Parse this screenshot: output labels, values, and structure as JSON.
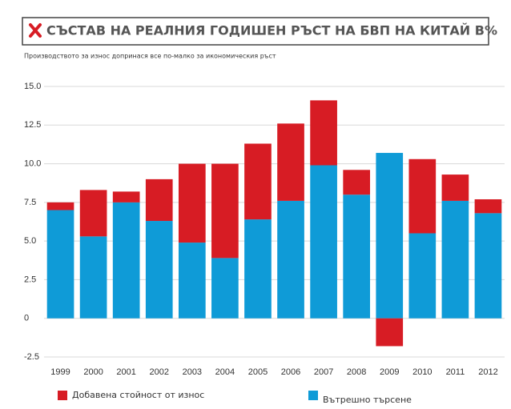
{
  "chart_data": {
    "type": "stacked_bar",
    "title": "СЪСТАВ НА РЕАЛНИЯ ГОДИШЕН РЪСТ НА БВП НА КИТАЙ В%",
    "subtitle": "Производството за износ допринася все по-малко за икономическия ръст",
    "categories": [
      "1999",
      "2000",
      "2001",
      "2002",
      "2003",
      "2004",
      "2005",
      "2006",
      "2007",
      "2008",
      "2009",
      "2010",
      "2011",
      "2012"
    ],
    "series": [
      {
        "name": "Вътрешно търсене",
        "color": "#0f9bd7",
        "values": [
          7.0,
          5.3,
          7.5,
          6.3,
          4.9,
          3.9,
          6.4,
          7.6,
          9.9,
          8.0,
          10.7,
          5.5,
          7.6,
          6.8
        ]
      },
      {
        "name": "Добавена стойност от износ",
        "color": "#d71c24",
        "values": [
          0.5,
          3.0,
          0.7,
          2.7,
          5.1,
          6.1,
          4.9,
          5.0,
          4.2,
          1.6,
          -1.8,
          4.8,
          1.7,
          0.9
        ]
      }
    ],
    "ylim": [
      -2.5,
      15
    ],
    "yticks": [
      -2.5,
      0,
      {
        "value": 2.5,
        "label": "2.5"
      },
      {
        "value": 5,
        "label": "5.0"
      },
      {
        "value": 7.5,
        "label": "7.5"
      },
      {
        "value": 10,
        "label": "10.0"
      },
      {
        "value": 12.5,
        "label": "12.5"
      },
      {
        "value": 15,
        "label": "15.0"
      }
    ],
    "grid": true
  }
}
